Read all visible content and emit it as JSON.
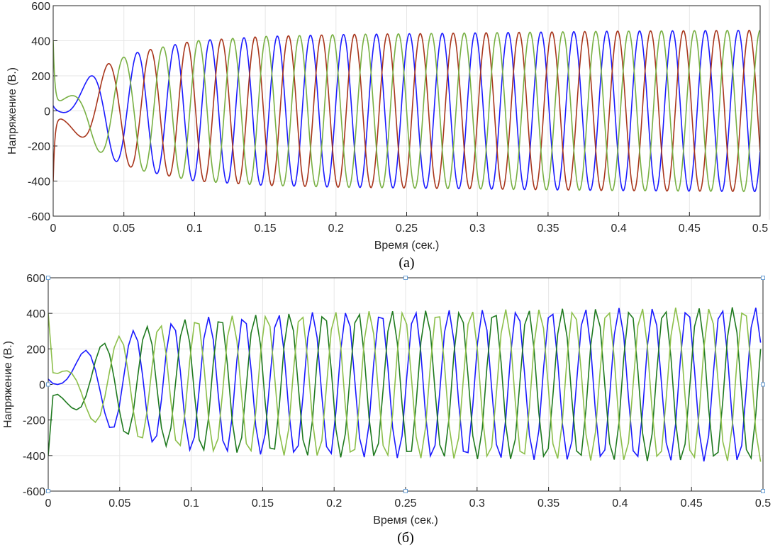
{
  "chart_data": [
    {
      "type": "line",
      "caption": "(a)",
      "xlabel": "Время (сек.)",
      "ylabel": "Напряжение (В.)",
      "xlim": [
        0,
        0.5
      ],
      "ylim": [
        -600,
        600
      ],
      "xticks": [
        "0",
        "0.05",
        "0.1",
        "0.15",
        "0.2",
        "0.25",
        "0.3",
        "0.35",
        "0.4",
        "0.45",
        "0.5"
      ],
      "yticks": [
        "-600",
        "-400",
        "-200",
        "0",
        "200",
        "400",
        "600"
      ],
      "grid": true,
      "legend": "none",
      "style": "smooth",
      "steady_frequency_hz": 43,
      "series": [
        {
          "color": "#1a1aff",
          "initial_value": 30,
          "first_peak": [
            0.026,
            195
          ]
        },
        {
          "color": "#a8361c",
          "initial_value": -400,
          "first_peak": [
            0.039,
            270
          ]
        },
        {
          "color": "#78b043",
          "initial_value": 400,
          "first_peak": [
            0.051,
            310
          ]
        }
      ],
      "peak_envelope": [
        [
          0.026,
          195
        ],
        [
          0.039,
          270
        ],
        [
          0.051,
          310
        ],
        [
          0.062,
          340
        ],
        [
          0.1,
          400
        ],
        [
          0.15,
          425
        ],
        [
          0.2,
          435
        ],
        [
          0.3,
          445
        ],
        [
          0.4,
          455
        ],
        [
          0.5,
          460
        ]
      ]
    },
    {
      "type": "line",
      "caption": "(б)",
      "xlabel": "Время (сек.)",
      "ylabel": "Напряжение (В.)",
      "xlim": [
        0,
        0.5
      ],
      "ylim": [
        -600,
        600
      ],
      "xticks": [
        "0",
        "0.05",
        "0.1",
        "0.15",
        "0.2",
        "0.25",
        "0.3",
        "0.35",
        "0.4",
        "0.45",
        "0.5"
      ],
      "yticks": [
        "-600",
        "-400",
        "-200",
        "0",
        "200",
        "400",
        "600"
      ],
      "grid": true,
      "legend": "none",
      "style": "piecewise-linear",
      "steady_frequency_hz": 42,
      "series": [
        {
          "color": "#1a1aff",
          "initial_value": 30,
          "first_peak": [
            0.025,
            190
          ]
        },
        {
          "color": "#1f7a1f",
          "initial_value": -400,
          "first_peak": [
            0.042,
            245
          ]
        },
        {
          "color": "#8cbf4a",
          "initial_value": 400,
          "first_peak": [
            0.055,
            290
          ]
        }
      ],
      "peak_envelope": [
        [
          0.025,
          190
        ],
        [
          0.042,
          245
        ],
        [
          0.055,
          290
        ],
        [
          0.065,
          320
        ],
        [
          0.095,
          365
        ],
        [
          0.1,
          375
        ],
        [
          0.15,
          395
        ],
        [
          0.2,
          410
        ],
        [
          0.3,
          420
        ],
        [
          0.4,
          430
        ],
        [
          0.5,
          435
        ]
      ]
    }
  ]
}
